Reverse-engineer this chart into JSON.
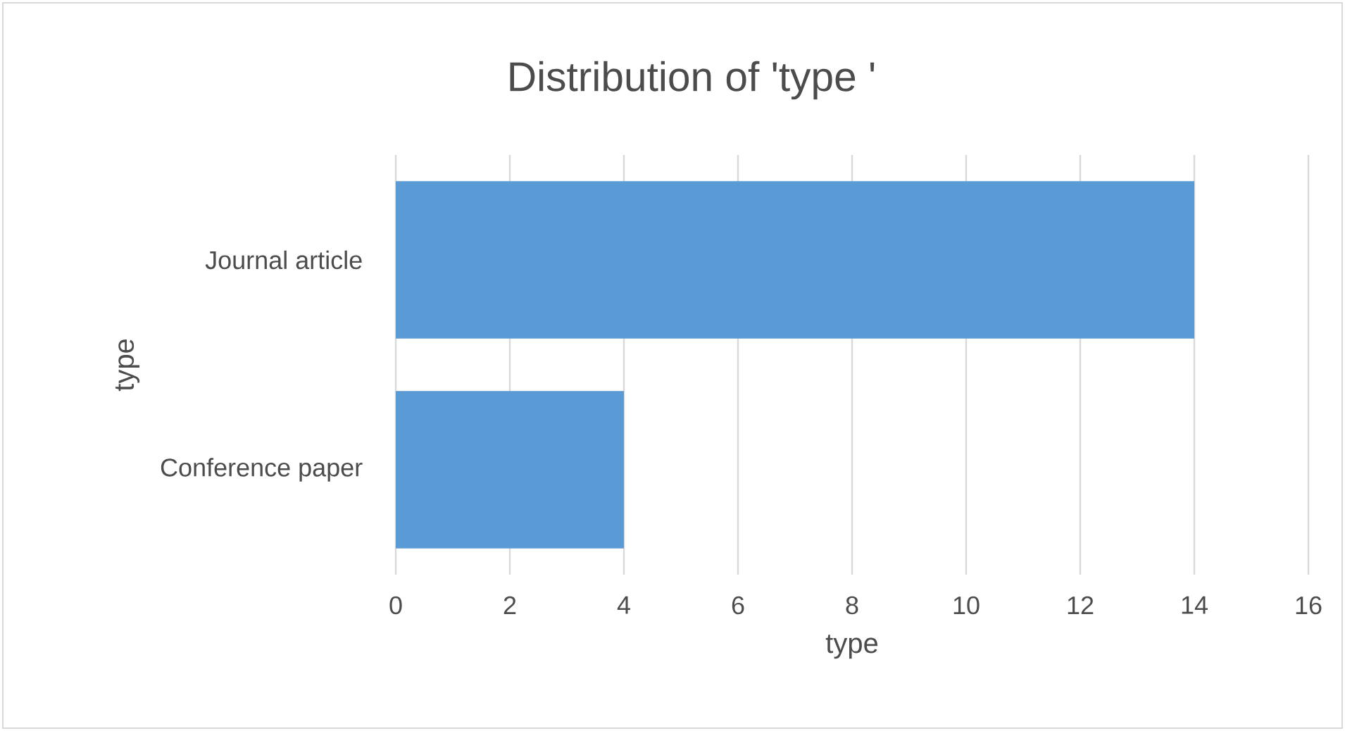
{
  "chart_data": {
    "type": "bar",
    "orientation": "horizontal",
    "title": "Distribution of 'type '",
    "xlabel": "type",
    "ylabel": "type",
    "categories": [
      "Journal article",
      "Conference paper"
    ],
    "values": [
      14,
      4
    ],
    "color": "#5b9bd5",
    "xlim": [
      0,
      16
    ],
    "xticks": [
      0,
      2,
      4,
      6,
      8,
      10,
      12,
      14,
      16
    ],
    "grid": "x"
  }
}
